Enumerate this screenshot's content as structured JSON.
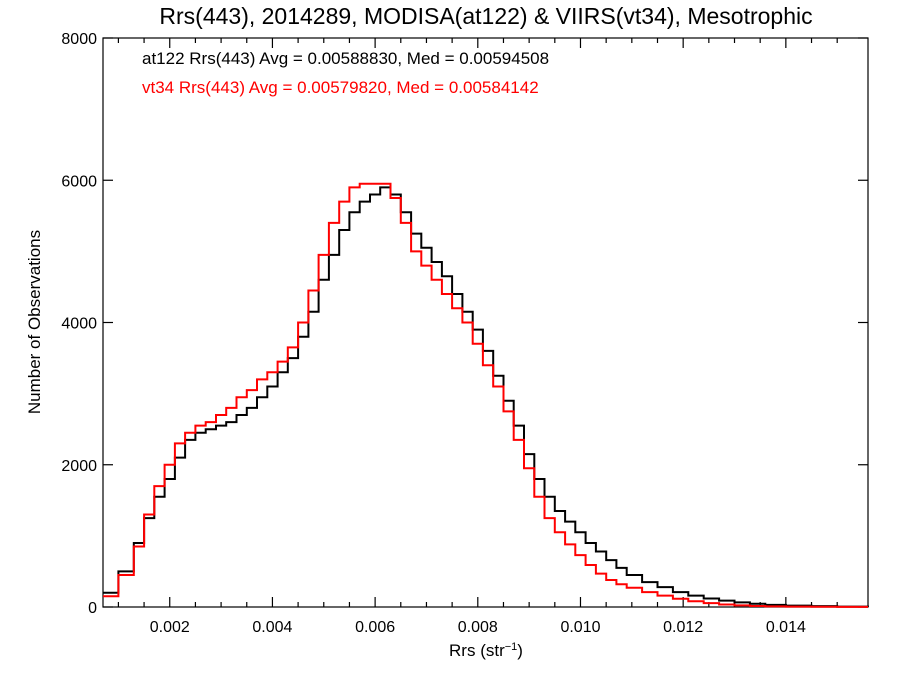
{
  "chart_data": {
    "type": "line",
    "title": "Rrs(443), 2014289, MODISA(at122) & VIIRS(vt34), Mesotrophic",
    "xlabel_main": "Rrs (str",
    "xlabel_sup": "−1",
    "xlabel_end": ")",
    "ylabel": "Number of Observations",
    "xlim": [
      0.0007,
      0.0156
    ],
    "ylim": [
      0,
      8000
    ],
    "xticks": [
      0.002,
      0.004,
      0.006,
      0.008,
      0.01,
      0.012,
      0.014
    ],
    "xtick_labels": [
      "0.002",
      "0.004",
      "0.006",
      "0.008",
      "0.010",
      "0.012",
      "0.014"
    ],
    "yticks": [
      0,
      2000,
      4000,
      6000,
      8000
    ],
    "ytick_labels": [
      "0",
      "2000",
      "4000",
      "6000",
      "8000"
    ],
    "grid": false,
    "legend_position": "top-left",
    "series": [
      {
        "name": "at122",
        "color": "#000000",
        "legend": "at122 Rrs(443) Avg = 0.00588830, Med = 0.00594508",
        "x": [
          0.0007,
          0.001,
          0.0013,
          0.0015,
          0.0017,
          0.0019,
          0.0021,
          0.0023,
          0.0025,
          0.0027,
          0.0029,
          0.0031,
          0.0033,
          0.0035,
          0.0037,
          0.0039,
          0.0041,
          0.0043,
          0.0045,
          0.0047,
          0.0049,
          0.0051,
          0.0053,
          0.0055,
          0.0057,
          0.0059,
          0.0061,
          0.0063,
          0.0065,
          0.0067,
          0.0069,
          0.0071,
          0.0073,
          0.0075,
          0.0077,
          0.0079,
          0.0081,
          0.0083,
          0.0085,
          0.0087,
          0.0089,
          0.0091,
          0.0093,
          0.0095,
          0.0097,
          0.0099,
          0.0101,
          0.0103,
          0.0105,
          0.0107,
          0.0109,
          0.0112,
          0.0115,
          0.0118,
          0.0121,
          0.0124,
          0.0127,
          0.013,
          0.0133,
          0.0136,
          0.014,
          0.0145,
          0.015,
          0.0156
        ],
        "y": [
          200,
          500,
          900,
          1250,
          1550,
          1800,
          2100,
          2350,
          2450,
          2500,
          2550,
          2600,
          2700,
          2800,
          2950,
          3100,
          3300,
          3500,
          3800,
          4150,
          4600,
          4950,
          5300,
          5550,
          5700,
          5800,
          5900,
          5800,
          5550,
          5250,
          5050,
          4850,
          4650,
          4400,
          4150,
          3900,
          3600,
          3250,
          2900,
          2550,
          2150,
          1800,
          1550,
          1350,
          1200,
          1050,
          900,
          780,
          660,
          550,
          450,
          350,
          280,
          210,
          160,
          120,
          90,
          65,
          45,
          30,
          20,
          12,
          6,
          3
        ]
      },
      {
        "name": "vt34",
        "color": "#ff0000",
        "legend": "vt34 Rrs(443) Avg = 0.00579820, Med = 0.00584142",
        "x": [
          0.0007,
          0.001,
          0.0013,
          0.0015,
          0.0017,
          0.0019,
          0.0021,
          0.0023,
          0.0025,
          0.0027,
          0.0029,
          0.0031,
          0.0033,
          0.0035,
          0.0037,
          0.0039,
          0.0041,
          0.0043,
          0.0045,
          0.0047,
          0.0049,
          0.0051,
          0.0053,
          0.0055,
          0.0057,
          0.0059,
          0.0061,
          0.0063,
          0.0065,
          0.0067,
          0.0069,
          0.0071,
          0.0073,
          0.0075,
          0.0077,
          0.0079,
          0.0081,
          0.0083,
          0.0085,
          0.0087,
          0.0089,
          0.0091,
          0.0093,
          0.0095,
          0.0097,
          0.0099,
          0.0101,
          0.0103,
          0.0105,
          0.0107,
          0.0109,
          0.0112,
          0.0115,
          0.0118,
          0.0121,
          0.0124,
          0.0127,
          0.013,
          0.0133,
          0.0136,
          0.014,
          0.0145,
          0.015,
          0.0156
        ],
        "y": [
          150,
          450,
          850,
          1300,
          1700,
          2000,
          2300,
          2450,
          2550,
          2600,
          2700,
          2800,
          2950,
          3050,
          3200,
          3300,
          3450,
          3650,
          4000,
          4450,
          4950,
          5400,
          5700,
          5900,
          5950,
          5950,
          5950,
          5750,
          5400,
          5000,
          4800,
          4600,
          4400,
          4200,
          4000,
          3700,
          3400,
          3100,
          2750,
          2350,
          1950,
          1550,
          1250,
          1050,
          880,
          730,
          590,
          470,
          380,
          320,
          270,
          210,
          160,
          115,
          80,
          55,
          35,
          22,
          14,
          9,
          5,
          3,
          2,
          1
        ]
      }
    ]
  }
}
